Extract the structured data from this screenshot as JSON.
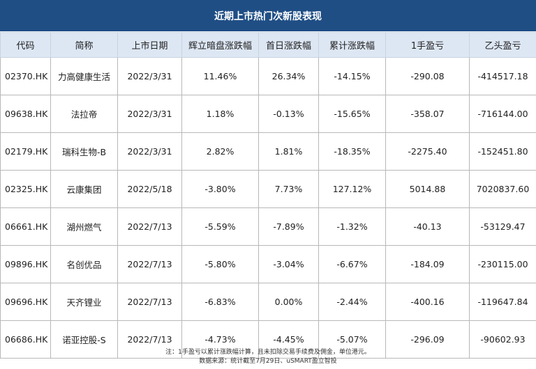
{
  "title": "近期上市热门次新股表现",
  "headers": [
    "代码",
    "简称",
    "上市日期",
    "辉立暗盘涨跌幅",
    "首日涨跌幅",
    "累计涨跌幅",
    "1手盈亏",
    "乙头盈亏"
  ],
  "rows": [
    [
      "02370.HK",
      "力高健康生活",
      "2022/3/31",
      "11.46%",
      "26.34%",
      "-14.15%",
      "-290.08",
      "-414517.18"
    ],
    [
      "09638.HK",
      "法拉帝",
      "2022/3/31",
      "1.18%",
      "-0.13%",
      "-15.65%",
      "-358.07",
      "-716144.00"
    ],
    [
      "02179.HK",
      "瑞科生物-B",
      "2022/3/31",
      "2.82%",
      "1.81%",
      "-18.35%",
      "-2275.40",
      "-152451.80"
    ],
    [
      "02325.HK",
      "云康集团",
      "2022/5/18",
      "-3.80%",
      "7.73%",
      "127.12%",
      "5014.88",
      "7020837.60"
    ],
    [
      "06661.HK",
      "湖州燃气",
      "2022/7/13",
      "-5.59%",
      "-7.89%",
      "-1.32%",
      "-40.13",
      "-53129.47"
    ],
    [
      "09896.HK",
      "名创优品",
      "2022/7/13",
      "-5.80%",
      "-3.04%",
      "-6.67%",
      "-184.09",
      "-230115.00"
    ],
    [
      "09696.HK",
      "天齐锂业",
      "2022/7/13",
      "-6.83%",
      "0.00%",
      "-2.44%",
      "-400.16",
      "-119647.84"
    ],
    [
      "06686.HK",
      "诺亚控股-S",
      "2022/7/13",
      "-4.73%",
      "-4.45%",
      "-5.07%",
      "-296.09",
      "-90602.93"
    ]
  ],
  "note_line1": "注：1手盈亏以累计涨跌幅计算，且未扣除交易手续费及佣金，单位港元。",
  "note_line2": "数据来源：统计截至7月29日、uSMART盈立智投",
  "colors": {
    "title_bg": "#1f4e85",
    "header_bg": "#dde7f4"
  }
}
